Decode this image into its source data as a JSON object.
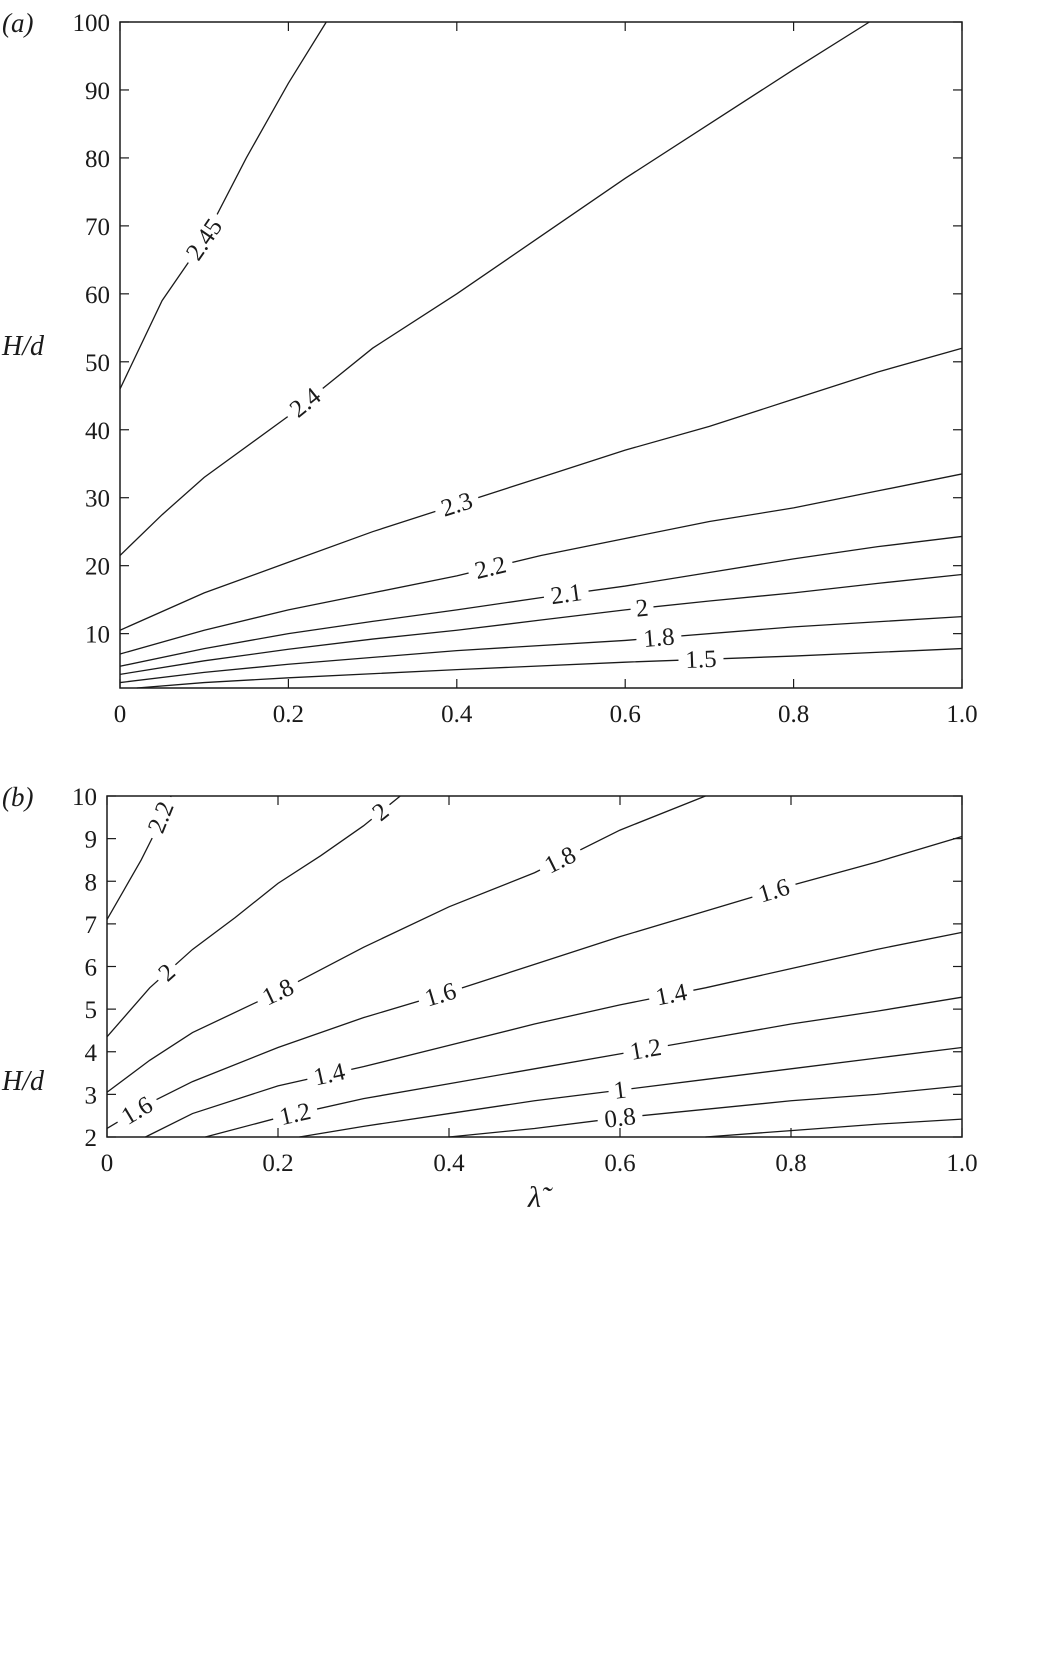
{
  "chart_data": [
    {
      "type": "contour",
      "panel_label": "(a)",
      "xlabel": "",
      "ylabel": "H/d",
      "xlim": [
        0,
        1.0
      ],
      "ylim": [
        2,
        100
      ],
      "xticks": [
        "0",
        "0.2",
        "0.4",
        "0.6",
        "0.8",
        "1.0"
      ],
      "xtick_values": [
        0,
        0.2,
        0.4,
        0.6,
        0.8,
        1.0
      ],
      "yticks": [
        "10",
        "20",
        "30",
        "40",
        "50",
        "60",
        "70",
        "80",
        "90",
        "100"
      ],
      "ytick_values": [
        10,
        20,
        30,
        40,
        50,
        60,
        70,
        80,
        90,
        100
      ],
      "line_color": "#1a1a1a",
      "contours": [
        {
          "level": "2.45",
          "label_at": [
            0.1
          ],
          "points": [
            [
              0,
              46
            ],
            [
              0.05,
              59
            ],
            [
              0.1,
              68
            ],
            [
              0.15,
              80
            ],
            [
              0.2,
              91
            ],
            [
              0.245,
              100
            ]
          ]
        },
        {
          "level": "2.4",
          "label_at": [
            0.22
          ],
          "points": [
            [
              0,
              21.5
            ],
            [
              0.05,
              27.5
            ],
            [
              0.1,
              33
            ],
            [
              0.2,
              42
            ],
            [
              0.3,
              52
            ],
            [
              0.4,
              60
            ],
            [
              0.5,
              68.5
            ],
            [
              0.6,
              77
            ],
            [
              0.7,
              85
            ],
            [
              0.8,
              93
            ],
            [
              0.89,
              100
            ]
          ]
        },
        {
          "level": "2.3",
          "label_at": [
            0.4
          ],
          "points": [
            [
              0,
              10.5
            ],
            [
              0.1,
              16
            ],
            [
              0.2,
              20.5
            ],
            [
              0.3,
              25
            ],
            [
              0.4,
              29
            ],
            [
              0.5,
              33
            ],
            [
              0.6,
              37
            ],
            [
              0.7,
              40.5
            ],
            [
              0.8,
              44.5
            ],
            [
              0.9,
              48.5
            ],
            [
              1.0,
              52
            ]
          ]
        },
        {
          "level": "2.2",
          "label_at": [
            0.44
          ],
          "points": [
            [
              0,
              7
            ],
            [
              0.1,
              10.5
            ],
            [
              0.2,
              13.5
            ],
            [
              0.3,
              16
            ],
            [
              0.4,
              18.5
            ],
            [
              0.5,
              21.5
            ],
            [
              0.6,
              24
            ],
            [
              0.7,
              26.5
            ],
            [
              0.8,
              28.5
            ],
            [
              0.9,
              31
            ],
            [
              1.0,
              33.5
            ]
          ]
        },
        {
          "level": "2.1",
          "label_at": [
            0.53
          ],
          "points": [
            [
              0,
              5.2
            ],
            [
              0.1,
              7.8
            ],
            [
              0.2,
              10
            ],
            [
              0.3,
              11.8
            ],
            [
              0.4,
              13.5
            ],
            [
              0.5,
              15.3
            ],
            [
              0.6,
              17
            ],
            [
              0.7,
              19
            ],
            [
              0.8,
              21
            ],
            [
              0.9,
              22.8
            ],
            [
              1.0,
              24.3
            ]
          ]
        },
        {
          "level": "2",
          "label_at": [
            0.62
          ],
          "points": [
            [
              0,
              4
            ],
            [
              0.1,
              6
            ],
            [
              0.2,
              7.7
            ],
            [
              0.3,
              9.2
            ],
            [
              0.4,
              10.5
            ],
            [
              0.5,
              12
            ],
            [
              0.6,
              13.5
            ],
            [
              0.7,
              14.8
            ],
            [
              0.8,
              16
            ],
            [
              0.9,
              17.4
            ],
            [
              1.0,
              18.7
            ]
          ]
        },
        {
          "level": "1.8",
          "label_at": [
            0.64
          ],
          "points": [
            [
              0,
              2.8
            ],
            [
              0.1,
              4.3
            ],
            [
              0.2,
              5.5
            ],
            [
              0.4,
              7.5
            ],
            [
              0.6,
              9
            ],
            [
              0.8,
              11
            ],
            [
              1.0,
              12.5
            ]
          ]
        },
        {
          "level": "1.5",
          "label_at": [
            0.69
          ],
          "points": [
            [
              0.02,
              2
            ],
            [
              0.1,
              2.8
            ],
            [
              0.2,
              3.5
            ],
            [
              0.4,
              4.7
            ],
            [
              0.6,
              5.8
            ],
            [
              0.8,
              6.7
            ],
            [
              1.0,
              7.8
            ]
          ]
        }
      ]
    },
    {
      "type": "contour",
      "panel_label": "(b)",
      "xlabel": "λ̃",
      "ylabel": "H/d",
      "xlim": [
        0,
        1.0
      ],
      "ylim": [
        2,
        10
      ],
      "xticks": [
        "0",
        "0.2",
        "0.4",
        "0.6",
        "0.8",
        "1.0"
      ],
      "xtick_values": [
        0,
        0.2,
        0.4,
        0.6,
        0.8,
        1.0
      ],
      "yticks": [
        "2",
        "3",
        "4",
        "5",
        "6",
        "7",
        "8",
        "9",
        "10"
      ],
      "ytick_values": [
        2,
        3,
        4,
        5,
        6,
        7,
        8,
        9,
        10
      ],
      "line_color": "#1a1a1a",
      "contours": [
        {
          "level": "2.2",
          "label_at": [
            0.063
          ],
          "points": [
            [
              0,
              7.1
            ],
            [
              0.02,
              7.8
            ],
            [
              0.04,
              8.5
            ],
            [
              0.055,
              9.1
            ],
            [
              0.065,
              9.6
            ],
            [
              0.075,
              10
            ]
          ]
        },
        {
          "level": "2",
          "label_at": [
            0.32,
            0.07
          ],
          "points": [
            [
              0,
              4.35
            ],
            [
              0.05,
              5.5
            ],
            [
              0.1,
              6.4
            ],
            [
              0.15,
              7.15
            ],
            [
              0.2,
              7.95
            ],
            [
              0.25,
              8.6
            ],
            [
              0.3,
              9.3
            ],
            [
              0.343,
              10
            ]
          ]
        },
        {
          "level": "1.8",
          "label_at": [
            0.53,
            0.2
          ],
          "points": [
            [
              0,
              3.05
            ],
            [
              0.05,
              3.8
            ],
            [
              0.1,
              4.45
            ],
            [
              0.2,
              5.4
            ],
            [
              0.3,
              6.45
            ],
            [
              0.4,
              7.4
            ],
            [
              0.5,
              8.2
            ],
            [
              0.6,
              9.2
            ],
            [
              0.7,
              10
            ]
          ]
        },
        {
          "level": "1.6",
          "label_at": [
            0.78,
            0.39,
            0.035
          ],
          "points": [
            [
              0,
              2.2
            ],
            [
              0.05,
              2.8
            ],
            [
              0.1,
              3.3
            ],
            [
              0.2,
              4.1
            ],
            [
              0.3,
              4.8
            ],
            [
              0.4,
              5.4
            ],
            [
              0.5,
              6.05
            ],
            [
              0.6,
              6.7
            ],
            [
              0.7,
              7.3
            ],
            [
              0.8,
              7.9
            ],
            [
              0.9,
              8.45
            ],
            [
              1.0,
              9.05
            ]
          ]
        },
        {
          "level": "1.4",
          "label_at": [
            0.66,
            0.26
          ],
          "points": [
            [
              0.045,
              2
            ],
            [
              0.1,
              2.55
            ],
            [
              0.2,
              3.2
            ],
            [
              0.3,
              3.65
            ],
            [
              0.4,
              4.15
            ],
            [
              0.5,
              4.65
            ],
            [
              0.6,
              5.1
            ],
            [
              0.7,
              5.5
            ],
            [
              0.8,
              5.95
            ],
            [
              0.9,
              6.4
            ],
            [
              1.0,
              6.8
            ]
          ]
        },
        {
          "level": "1.2",
          "label_at": [
            0.63,
            0.22
          ],
          "points": [
            [
              0.115,
              2
            ],
            [
              0.2,
              2.45
            ],
            [
              0.3,
              2.9
            ],
            [
              0.4,
              3.25
            ],
            [
              0.5,
              3.6
            ],
            [
              0.6,
              3.95
            ],
            [
              0.7,
              4.3
            ],
            [
              0.8,
              4.65
            ],
            [
              0.9,
              4.95
            ],
            [
              1.0,
              5.28
            ]
          ]
        },
        {
          "level": "1",
          "label_at": [
            0.6
          ],
          "points": [
            [
              0.225,
              2
            ],
            [
              0.3,
              2.25
            ],
            [
              0.4,
              2.55
            ],
            [
              0.5,
              2.85
            ],
            [
              0.6,
              3.1
            ],
            [
              0.7,
              3.35
            ],
            [
              0.8,
              3.6
            ],
            [
              0.9,
              3.85
            ],
            [
              1.0,
              4.1
            ]
          ]
        },
        {
          "level": "0.8",
          "label_at": [
            0.6
          ],
          "points": [
            [
              0.4,
              2
            ],
            [
              0.5,
              2.2
            ],
            [
              0.6,
              2.45
            ],
            [
              0.7,
              2.65
            ],
            [
              0.8,
              2.85
            ],
            [
              0.9,
              3.0
            ],
            [
              1.0,
              3.2
            ]
          ]
        },
        {
          "level": "",
          "label_at": [],
          "points": [
            [
              0.7,
              2
            ],
            [
              0.8,
              2.15
            ],
            [
              0.9,
              2.3
            ],
            [
              1.0,
              2.42
            ]
          ]
        }
      ]
    }
  ]
}
